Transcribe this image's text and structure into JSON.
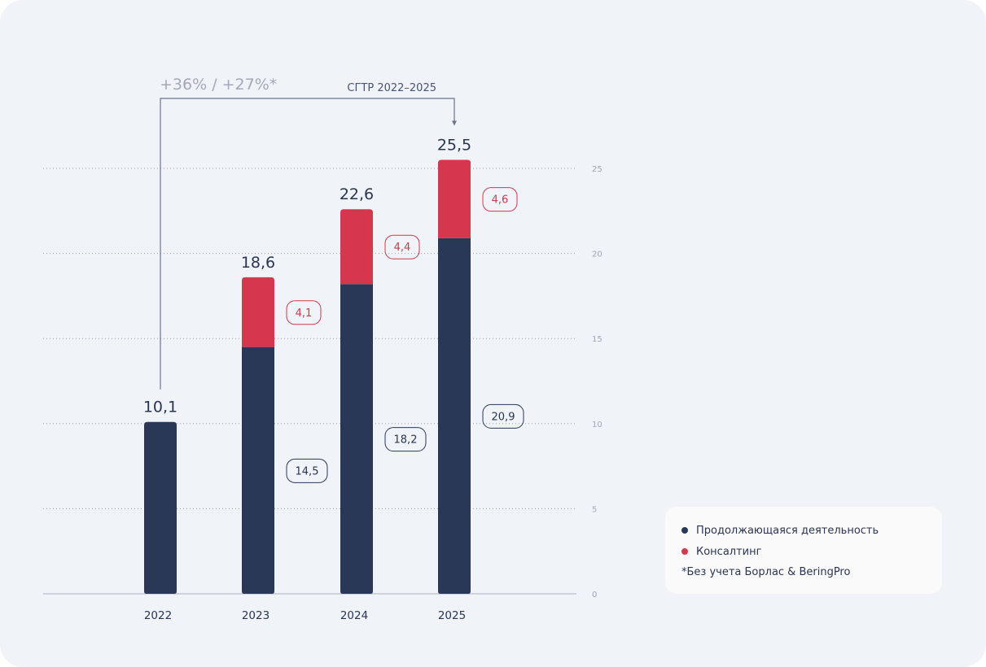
{
  "colors": {
    "continuing": "#2a3858",
    "consulting": "#d6374f",
    "growth_text": "#a3a8bb",
    "axis_text": "#a0a6b8",
    "label_text": "#2a3553",
    "grid": "#9aa0b2"
  },
  "chart_data": {
    "type": "bar",
    "stacked": true,
    "categories": [
      "2022",
      "2023",
      "2024",
      "2025"
    ],
    "series": [
      {
        "name": "Продолжающаяся деятельность",
        "values": [
          10.1,
          14.5,
          18.2,
          20.9
        ],
        "labels": [
          "",
          "14,5",
          "18,2",
          "20,9"
        ]
      },
      {
        "name": "Консалтинг",
        "values": [
          0,
          4.1,
          4.4,
          4.6
        ],
        "labels": [
          "",
          "4,1",
          "4,4",
          "4,6"
        ]
      }
    ],
    "totals": [
      10.1,
      18.6,
      22.6,
      25.5
    ],
    "total_labels": [
      "10,1",
      "18,6",
      "22,6",
      "25,5"
    ],
    "yticks": [
      0,
      5,
      10,
      15,
      20,
      25
    ],
    "ytick_labels": [
      "0",
      "5",
      "10",
      "15",
      "20",
      "25"
    ],
    "ylim": [
      0,
      25
    ],
    "grid": true,
    "legend_position": "bottom-right",
    "annotation": {
      "growth_text": "+36% / +27%*",
      "cagr_label": "СГТР 2022–2025",
      "from_category": "2022",
      "to_category": "2025"
    }
  },
  "legend": {
    "items": [
      {
        "label": "Продолжающаяся деятельность",
        "color": "#2a3858"
      },
      {
        "label": "Консалтинг",
        "color": "#d6374f"
      }
    ],
    "note": "*Без учета Борлас & BeringPro"
  }
}
